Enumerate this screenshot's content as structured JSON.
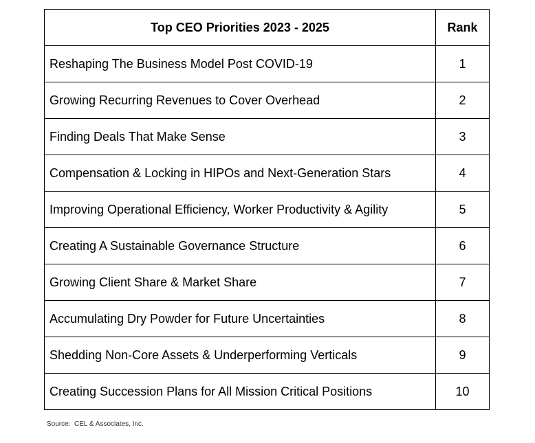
{
  "table": {
    "header": {
      "priority": "Top CEO Priorities 2023 - 2025",
      "rank": "Rank"
    },
    "rows": [
      {
        "priority": "Reshaping The Business Model Post COVID-19",
        "rank": "1"
      },
      {
        "priority": "Growing Recurring Revenues to Cover Overhead",
        "rank": "2"
      },
      {
        "priority": "Finding Deals That Make Sense",
        "rank": "3"
      },
      {
        "priority": "Compensation & Locking in HIPOs and Next-Generation Stars",
        "rank": "4"
      },
      {
        "priority": "Improving Operational Efficiency, Worker Productivity & Agility",
        "rank": "5"
      },
      {
        "priority": "Creating A Sustainable Governance Structure",
        "rank": "6"
      },
      {
        "priority": "Growing Client Share & Market Share",
        "rank": "7"
      },
      {
        "priority": "Accumulating Dry Powder for Future Uncertainties",
        "rank": "8"
      },
      {
        "priority": "Shedding Non-Core Assets & Underperforming Verticals",
        "rank": "9"
      },
      {
        "priority": "Creating Succession Plans for All Mission Critical Positions",
        "rank": "10"
      }
    ]
  },
  "source": "Source:  CEL & Associates, Inc."
}
